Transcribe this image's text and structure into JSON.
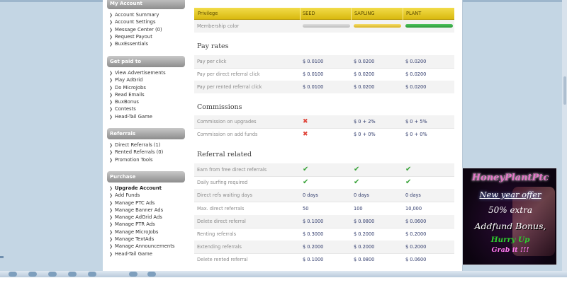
{
  "sidebar": {
    "sections": [
      {
        "title": "My Account",
        "items": [
          "Account Summary",
          "Account Settings",
          "Message Center (0)",
          "Request Payout",
          "BuxEssentials"
        ]
      },
      {
        "title": "Get paid to",
        "items": [
          "View Advertisements",
          "Play AdGrid",
          "Do MicroJobs",
          "Read Emails",
          "BuxBonus",
          "Contests",
          "Head-Tail Game"
        ]
      },
      {
        "title": "Referrals",
        "items": [
          "Direct Referrals (1)",
          "Rented Referrals (0)",
          "Promotion Tools"
        ]
      },
      {
        "title": "Purchase",
        "items": [
          "Upgrade Account",
          "Add Funds",
          "Manage PTC Ads",
          "Manage Banner Ads",
          "Manage AdGrid Ads",
          "Manage PTR Ads",
          "Manage MicroJobs",
          "Manage TextAds",
          "Manage Announcements",
          "Head-Tail Game"
        ]
      }
    ]
  },
  "table": {
    "header": {
      "privilege": "Privilege",
      "seed": "SEED",
      "sapling": "SAPLING",
      "plant": "PLANT"
    },
    "membership_color_label": "Membership color",
    "membership_colors": {
      "seed": "#c9c9c9",
      "sapling": "#e8c94a",
      "plant": "#37ab47"
    },
    "pay_rates": {
      "title": "Pay rates",
      "rows": [
        {
          "label": "Pay per click",
          "seed": "$ 0.0100",
          "sapling": "$ 0.0200",
          "plant": "$ 0.0200"
        },
        {
          "label": "Pay per direct referral click",
          "seed": "$ 0.0100",
          "sapling": "$ 0.0200",
          "plant": "$ 0.0200"
        },
        {
          "label": "Pay per rented referral click",
          "seed": "$ 0.0100",
          "sapling": "$ 0.0200",
          "plant": "$ 0.0200"
        }
      ]
    },
    "commissions": {
      "title": "Commissions",
      "rows": [
        {
          "label": "Commission on upgrades",
          "seed": "✖",
          "sapling": "$ 0 + 2%",
          "plant": "$ 0 + 5%"
        },
        {
          "label": "Commission on add funds",
          "seed": "✖",
          "sapling": "$ 0 + 0%",
          "plant": "$ 0 + 0%"
        }
      ]
    },
    "referral_related": {
      "title": "Referral related",
      "rows": [
        {
          "label": "Earn from free direct referrals",
          "seed": "✔",
          "sapling": "✔",
          "plant": "✔"
        },
        {
          "label": "Daily surfing required",
          "seed": "✔",
          "sapling": "✔",
          "plant": "✔"
        },
        {
          "label": "Direct refs waiting days",
          "seed": "0 days",
          "sapling": "0 days",
          "plant": "0 days"
        },
        {
          "label": "Max. direct referrals",
          "seed": "50",
          "sapling": "100",
          "plant": "10,000"
        },
        {
          "label": "Delete direct referral",
          "seed": "$ 0.1000",
          "sapling": "$ 0.0800",
          "plant": "$ 0.0600"
        },
        {
          "label": "Renting referrals",
          "seed": "$ 0.3000",
          "sapling": "$ 0.2000",
          "plant": "$ 0.2000"
        },
        {
          "label": "Extending referrals",
          "seed": "$ 0.2000",
          "sapling": "$ 0.2000",
          "plant": "$ 0.2000"
        },
        {
          "label": "Delete rented referral",
          "seed": "$ 0.1000",
          "sapling": "$ 0.0800",
          "plant": "$ 0.0600"
        }
      ]
    }
  },
  "ad": {
    "line1": "HoneyPlantPtc",
    "line2": "New year offer",
    "line3": "50% extra",
    "line4": "Addfund Bonus,",
    "line5": "Hurry Up",
    "line6": "Grab it !!!"
  },
  "colors": {
    "header_yellow": "#e6c521",
    "sidebar_header": "#9a9a9a",
    "value_text": "#2f3a6b"
  }
}
